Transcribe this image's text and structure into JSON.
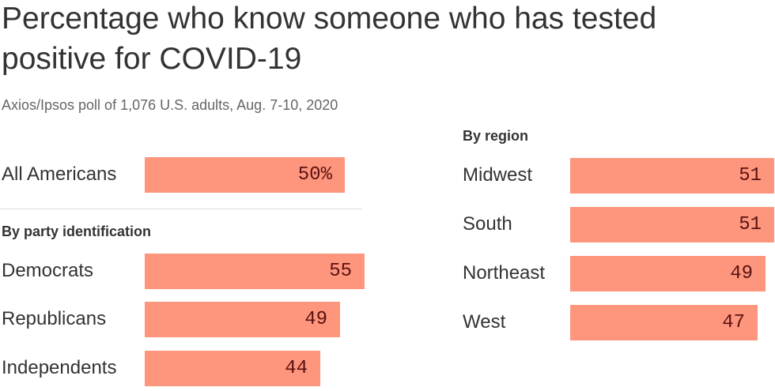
{
  "title": "Percentage who know someone who has tested positive for COVID-19",
  "subtitle": "Axios/Ipsos poll of 1,076 U.S. adults, Aug. 7-10, 2020",
  "colors": {
    "bar": "#fd967d",
    "value_text": "#5a1111",
    "text": "#333333"
  },
  "chart_data": [
    {
      "type": "bar",
      "orientation": "horizontal",
      "title": "",
      "categories": [
        "All Americans"
      ],
      "values": [
        50
      ],
      "value_labels": [
        "50%"
      ]
    },
    {
      "type": "bar",
      "orientation": "horizontal",
      "title": "By party identification",
      "categories": [
        "Democrats",
        "Republicans",
        "Independents"
      ],
      "values": [
        55,
        49,
        44
      ],
      "value_labels": [
        "55",
        "49",
        "44"
      ]
    },
    {
      "type": "bar",
      "orientation": "horizontal",
      "title": "By region",
      "categories": [
        "Midwest",
        "South",
        "Northeast",
        "West"
      ],
      "values": [
        51,
        51,
        49,
        47
      ],
      "value_labels": [
        "51",
        "51",
        "49",
        "47"
      ]
    }
  ]
}
